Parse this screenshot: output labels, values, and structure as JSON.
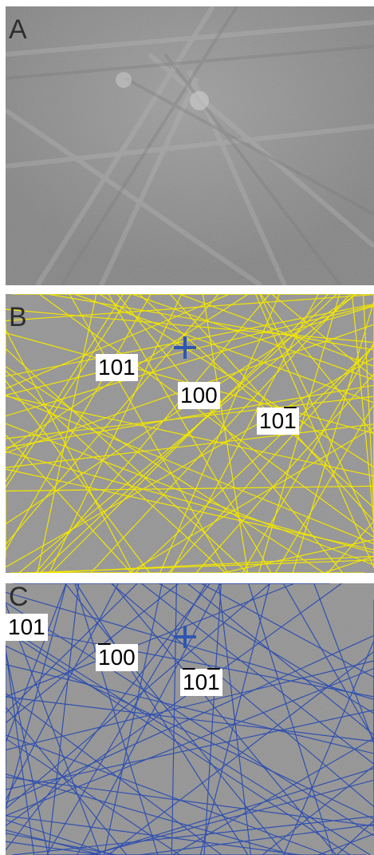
{
  "panels": [
    {
      "id": "A",
      "label": "A",
      "line_color": null,
      "annotations": []
    },
    {
      "id": "B",
      "label": "B",
      "line_color": "#f2e600",
      "annotations": [
        {
          "text": "101",
          "bar": false
        },
        {
          "text": "100",
          "bar": false
        },
        {
          "prefix": "10",
          "barred": "1",
          "bar": true
        }
      ]
    },
    {
      "id": "C",
      "label": "C",
      "line_color": "#3050b0",
      "annotations": [
        {
          "text": "101",
          "bar": false
        },
        {
          "barred": "1",
          "suffix": "00",
          "bar": true
        },
        {
          "barred": "1",
          "middle": "0",
          "barred2": "1",
          "bar": true
        }
      ]
    }
  ],
  "colors": {
    "background_gray": "#8c8c8c",
    "cross": "#2f56b0"
  }
}
